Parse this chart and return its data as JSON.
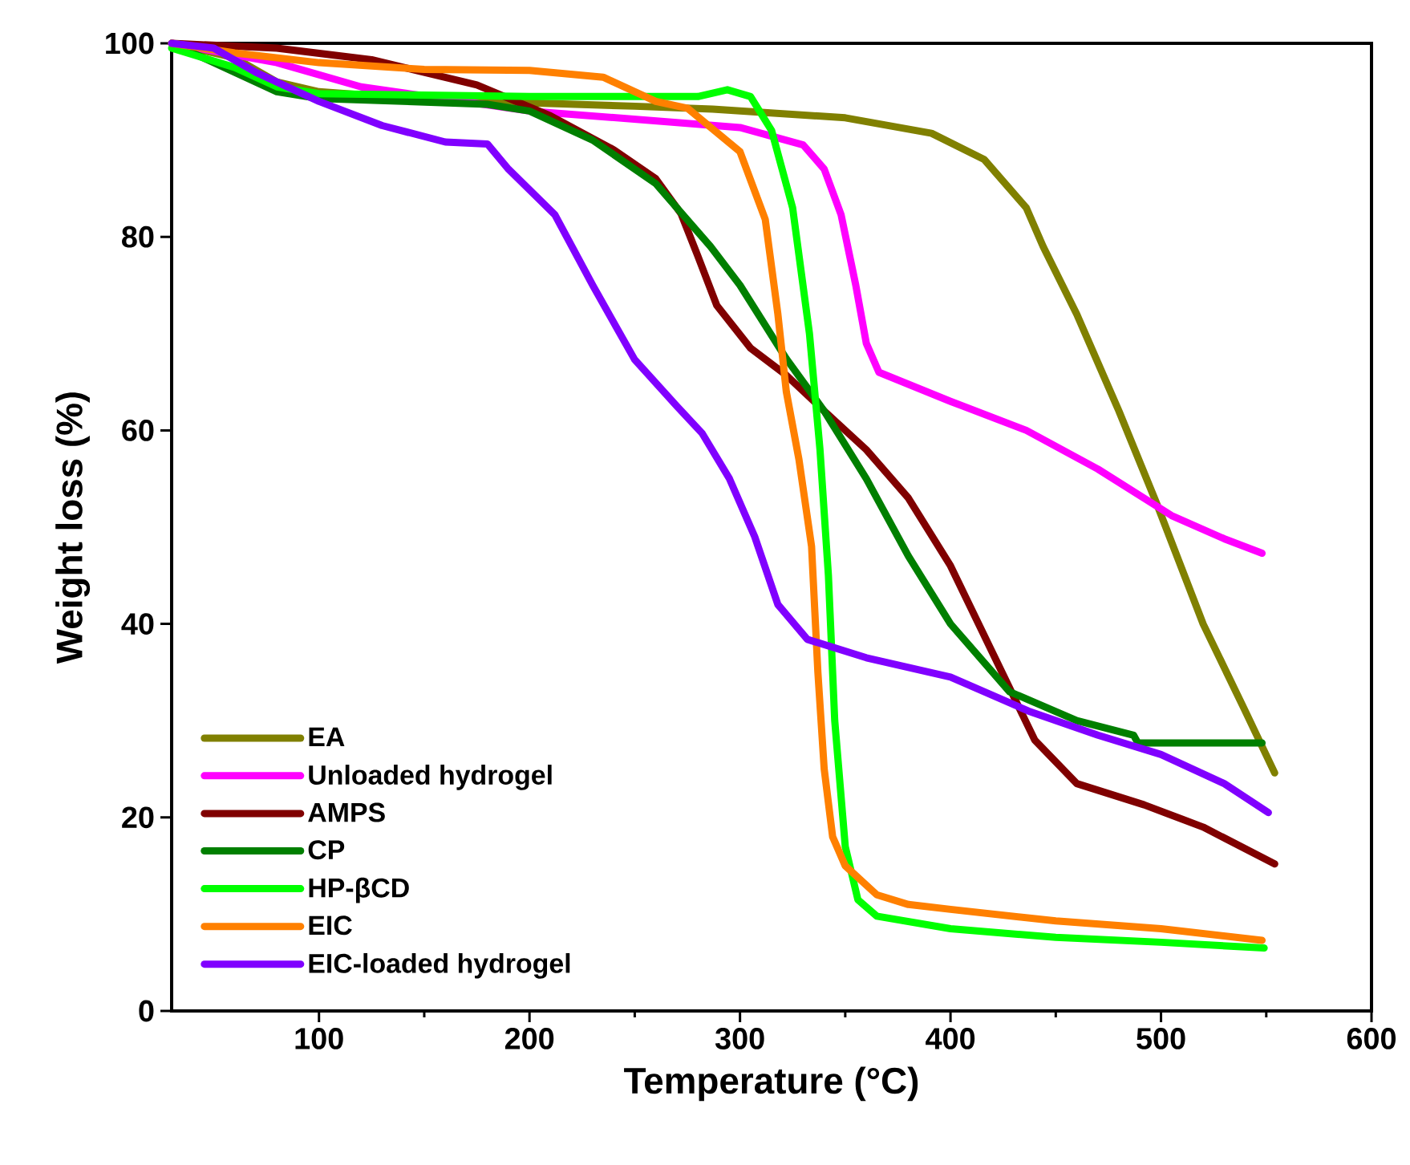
{
  "chart_data": {
    "type": "line",
    "xlabel": "Temperature (°C)",
    "ylabel": "Weight loss (%)",
    "xlim": [
      30,
      600
    ],
    "ylim": [
      0,
      100
    ],
    "xticks": [
      100,
      200,
      300,
      400,
      500,
      600
    ],
    "yticks": [
      0,
      20,
      40,
      60,
      80,
      100
    ],
    "legend": "bottom left",
    "series": [
      {
        "name": "EA",
        "color": "#808000",
        "x": [
          30,
          60,
          80,
          100,
          150,
          250,
          287,
          350,
          391,
          416,
          436,
          444,
          460,
          480,
          498,
          520,
          540,
          554
        ],
        "values": [
          100,
          98.5,
          96,
          95,
          94.2,
          93.5,
          93.2,
          92.3,
          90.7,
          88,
          83,
          79,
          72,
          62,
          52.4,
          40,
          31,
          24.6
        ]
      },
      {
        "name": "Unloaded hydrogel",
        "color": "#ff00ff",
        "x": [
          30,
          80,
          120,
          200,
          300,
          330,
          340,
          348,
          355,
          360,
          366,
          400,
          436,
          470,
          505,
          530,
          548
        ],
        "values": [
          100,
          98,
          95.5,
          93,
          91.3,
          89.5,
          87,
          82.3,
          75,
          69,
          66,
          63,
          60,
          56,
          51.2,
          48.8,
          47.3
        ]
      },
      {
        "name": "AMPS",
        "color": "#800000",
        "x": [
          30,
          80,
          125,
          175,
          210,
          240,
          260,
          272,
          280,
          289,
          305,
          322,
          340,
          360,
          380,
          400,
          420,
          440,
          460,
          492,
          520,
          554
        ],
        "values": [
          100,
          99.5,
          98.3,
          95.7,
          92.5,
          89,
          86,
          82.4,
          78,
          72.9,
          68.5,
          65.7,
          62,
          58,
          53,
          46,
          37,
          28,
          23.5,
          21.3,
          19,
          15.2
        ]
      },
      {
        "name": "CP",
        "color": "#007f00",
        "x": [
          30,
          60,
          80,
          100,
          180,
          200,
          230,
          260,
          286,
          300,
          322,
          340,
          360,
          380,
          400,
          428,
          460,
          487,
          489,
          548
        ],
        "values": [
          100,
          97,
          95,
          94.3,
          93.7,
          93,
          90,
          85.5,
          79,
          75,
          67.4,
          62,
          55,
          47,
          40,
          33,
          30,
          28.5,
          27.7,
          27.7
        ]
      },
      {
        "name": "HP-βCD",
        "color": "#00ff00",
        "x": [
          30,
          60,
          80,
          100,
          200,
          280,
          294,
          305,
          315,
          325,
          333,
          338,
          342,
          345,
          350,
          356,
          365,
          400,
          450,
          500,
          549
        ],
        "values": [
          99.5,
          97.5,
          95.5,
          94.8,
          94.5,
          94.5,
          95.2,
          94.5,
          91,
          83,
          70,
          58,
          45,
          30,
          17,
          11.5,
          9.8,
          8.5,
          7.6,
          7.1,
          6.5
        ]
      },
      {
        "name": "EIC",
        "color": "#ff8000",
        "x": [
          30,
          60,
          100,
          150,
          200,
          235,
          260,
          275,
          300,
          312,
          318,
          322,
          328,
          334,
          337,
          340,
          344,
          350,
          365,
          380,
          400,
          450,
          500,
          548
        ],
        "values": [
          100,
          99,
          98,
          97.3,
          97.2,
          96.5,
          94,
          93.3,
          88.8,
          81.8,
          72,
          64,
          57,
          48,
          35,
          25,
          18,
          15,
          12,
          11,
          10.5,
          9.3,
          8.5,
          7.3
        ]
      },
      {
        "name": "EIC-loaded hydrogel",
        "color": "#8000ff",
        "x": [
          30,
          50,
          70,
          100,
          130,
          160,
          180,
          190,
          212,
          230,
          250,
          270,
          282,
          295,
          307,
          318,
          332,
          360,
          400,
          437,
          470,
          500,
          530,
          551
        ],
        "values": [
          100,
          99.5,
          97,
          94,
          91.5,
          89.8,
          89.6,
          87,
          82.3,
          75,
          67.3,
          62.5,
          59.7,
          55,
          49,
          42,
          38.4,
          36.5,
          34.5,
          31,
          28.5,
          26.5,
          23.5,
          20.5
        ]
      }
    ]
  }
}
